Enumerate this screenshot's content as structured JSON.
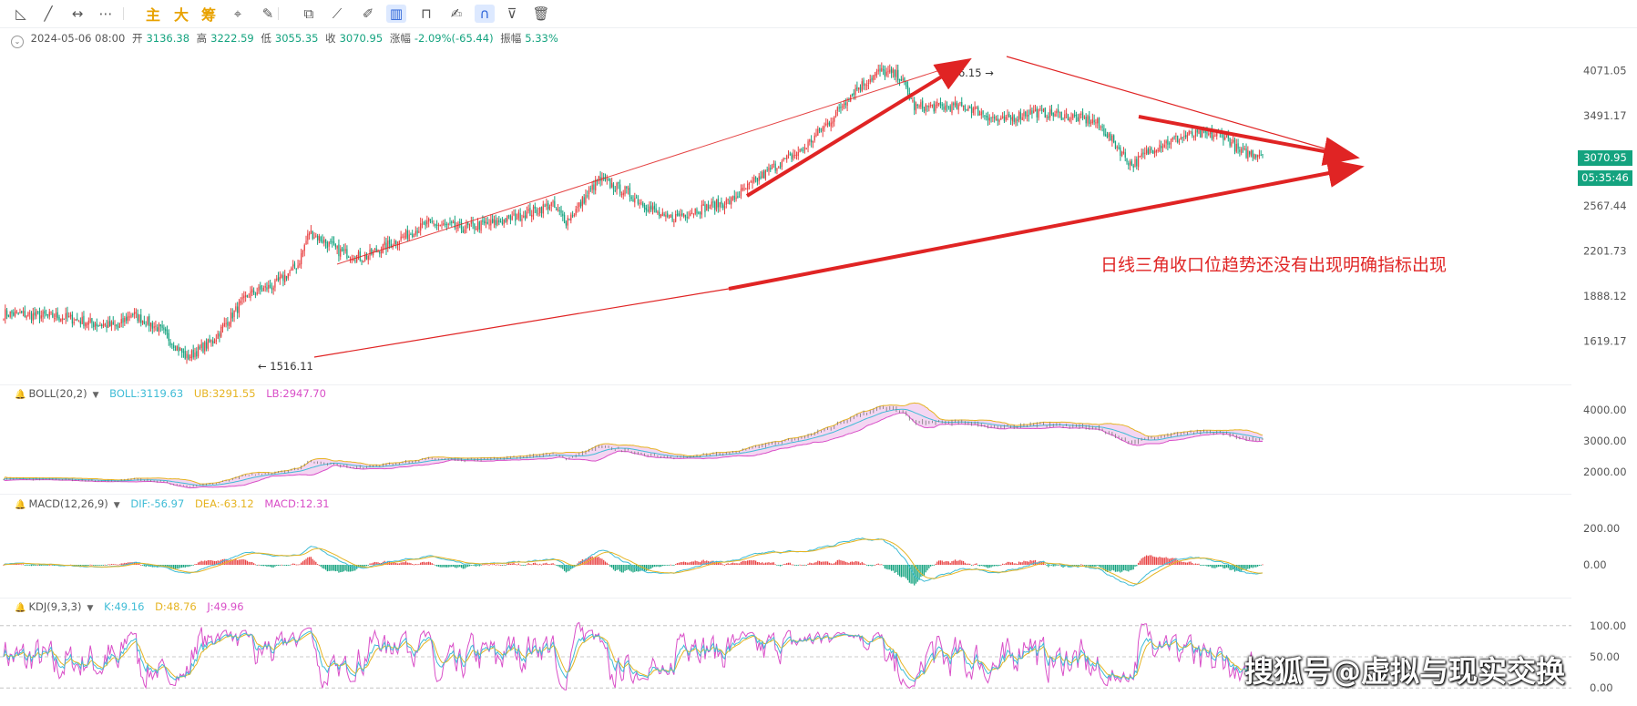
{
  "toolbar": {
    "items": [
      {
        "name": "ray-tool-icon",
        "glyph": "◺"
      },
      {
        "name": "trendline-tool-icon",
        "glyph": "╱"
      },
      {
        "name": "horizontal-line-tool-icon",
        "glyph": "↔"
      },
      {
        "name": "more-tools-icon",
        "glyph": "⋯"
      },
      {
        "name": "main-chip-toggle",
        "glyph": "主"
      },
      {
        "name": "large-order-toggle",
        "glyph": "大"
      },
      {
        "name": "chip-distribution-toggle",
        "glyph": "筹"
      },
      {
        "name": "crosshair-tool-icon",
        "glyph": "⌖"
      },
      {
        "name": "brush-tool-icon",
        "glyph": "✎"
      },
      {
        "name": "copy-icon",
        "glyph": "⧉"
      },
      {
        "name": "ruler-icon",
        "glyph": "⟋"
      },
      {
        "name": "pen-icon",
        "glyph": "✐"
      },
      {
        "name": "candle-style-icon",
        "glyph": "▥"
      },
      {
        "name": "lock-icon",
        "glyph": "⊓"
      },
      {
        "name": "note-icon",
        "glyph": "✍"
      },
      {
        "name": "magnet-icon",
        "glyph": "∩"
      },
      {
        "name": "filter-icon",
        "glyph": "⊽"
      },
      {
        "name": "trash-icon",
        "glyph": "🗑"
      }
    ]
  },
  "ohlc": {
    "date": "2024-05-06 08:00",
    "open_label": "开",
    "open": "3136.38",
    "high_label": "高",
    "high": "3222.59",
    "low_label": "低",
    "low": "3055.35",
    "close_label": "收",
    "close": "3070.95",
    "change_label": "涨幅",
    "change": "-2.09%(-65.44)",
    "amp_label": "振幅",
    "amp": "5.33%"
  },
  "boll_label": {
    "name": "BOLL(20,2)",
    "boll": "BOLL:3119.63",
    "ub": "UB:3291.55",
    "lb": "LB:2947.70"
  },
  "macd_label": {
    "name": "MACD(12,26,9)",
    "dif": "DIF:-56.97",
    "dea": "DEA:-63.12",
    "macd": "MACD:12.31"
  },
  "kdj_label": {
    "name": "KDJ(9,3,3)",
    "k": "K:49.16",
    "d": "D:48.76",
    "j": "J:49.96"
  },
  "price_tag": {
    "price": "3070.95",
    "countdown": "05:35:46"
  },
  "annotation": "日线三角收口位趋势还没有出现明确指标出现",
  "watermark": "搜狐号@虚拟与现实交换",
  "colors": {
    "up": "#e84142",
    "down": "#14a37f",
    "dif": "#3fbcd6",
    "dea": "#e6b422",
    "k": "#3fbcd6",
    "d": "#e6b422",
    "j": "#d94fc8",
    "arrow": "#e02424"
  },
  "chart_data": [
    {
      "type": "candlestick",
      "axis_ticks": [
        "4071.05",
        "3491.17",
        "3070.95",
        "2567.44",
        "2201.73",
        "1888.12",
        "1619.17"
      ],
      "ylim": [
        1450,
        4300
      ],
      "log_scale": true,
      "marked_high": "4096.15",
      "marked_low": "1516.11",
      "anchors": [
        [
          0,
          1780
        ],
        [
          35,
          1760
        ],
        [
          55,
          1720
        ],
        [
          70,
          1700
        ],
        [
          78,
          1780
        ],
        [
          95,
          1690
        ],
        [
          112,
          1530
        ],
        [
          128,
          1620
        ],
        [
          150,
          1900
        ],
        [
          166,
          1960
        ],
        [
          180,
          2100
        ],
        [
          187,
          2350
        ],
        [
          205,
          2200
        ],
        [
          220,
          2150
        ],
        [
          240,
          2280
        ],
        [
          260,
          2420
        ],
        [
          280,
          2380
        ],
        [
          300,
          2420
        ],
        [
          320,
          2500
        ],
        [
          335,
          2580
        ],
        [
          344,
          2440
        ],
        [
          350,
          2530
        ],
        [
          364,
          2810
        ],
        [
          380,
          2700
        ],
        [
          395,
          2550
        ],
        [
          405,
          2450
        ],
        [
          425,
          2540
        ],
        [
          445,
          2610
        ],
        [
          470,
          2920
        ],
        [
          488,
          3100
        ],
        [
          505,
          3420
        ],
        [
          520,
          3800
        ],
        [
          536,
          4060
        ],
        [
          548,
          4000
        ],
        [
          557,
          3600
        ],
        [
          571,
          3600
        ],
        [
          590,
          3600
        ],
        [
          610,
          3420
        ],
        [
          628,
          3540
        ],
        [
          648,
          3500
        ],
        [
          668,
          3420
        ],
        [
          690,
          2950
        ],
        [
          705,
          3150
        ],
        [
          725,
          3270
        ],
        [
          747,
          3270
        ],
        [
          756,
          3080
        ],
        [
          770,
          3070
        ]
      ],
      "candles": 771
    },
    {
      "type": "line",
      "name": "BOLL",
      "series": [
        "BOLL",
        "UB",
        "LB"
      ],
      "axis_ticks": [
        "4000.00",
        "3000.00",
        "2000.00"
      ],
      "ylim": [
        1500,
        4300
      ]
    },
    {
      "type": "bar",
      "name": "MACD",
      "series": [
        "DIF",
        "DEA",
        "MACD"
      ],
      "axis_ticks": [
        "200.00",
        "0.00"
      ],
      "ylim": [
        -150,
        300
      ]
    },
    {
      "type": "line",
      "name": "KDJ",
      "series": [
        "K",
        "D",
        "J"
      ],
      "axis_ticks": [
        "100.00",
        "50.00",
        "0.00"
      ],
      "ylim": [
        -10,
        110
      ]
    }
  ]
}
